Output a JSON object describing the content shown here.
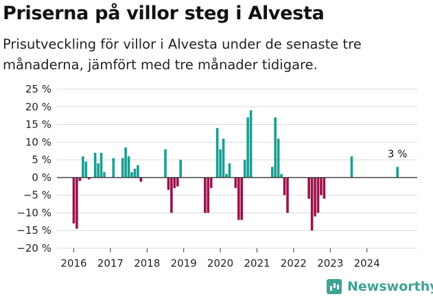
{
  "title": "Priserna på villor steg i Alvesta",
  "subtitle": "Prisutveckling för villor i Alvesta under de senaste tre månaderna, jämfört med tre månader tidigare.",
  "brand": {
    "name": "Newsworthy",
    "icon": "newsworthy-logo-icon"
  },
  "colors": {
    "positive": "#1a9e92",
    "negative": "#9c1149",
    "grid": "#d9d9d9",
    "zero": "#333333"
  },
  "chart_data": {
    "type": "bar",
    "ylim": [
      -20,
      25
    ],
    "yticks": [
      25,
      20,
      15,
      10,
      5,
      0,
      -5,
      -10,
      -15,
      -20
    ],
    "ytick_labels": [
      "25 %",
      "20 %",
      "15 %",
      "10 %",
      "5 %",
      "0 %",
      "−5 %",
      "−10 %",
      "−15 %",
      "−20 %"
    ],
    "xtick_labels": [
      "2016",
      "2017",
      "2018",
      "2019",
      "2020",
      "2021",
      "2022",
      "2023",
      "2024"
    ],
    "x_start": "2016-01",
    "grid": true,
    "annotation": {
      "label": "3 %",
      "x": "2024-11"
    },
    "series": [
      {
        "values": [
          -13,
          -14.5,
          -1,
          6,
          4.5,
          -0.5,
          null,
          7,
          4,
          7,
          1.5,
          null,
          null,
          5.5,
          null,
          null,
          5.5,
          8.5,
          6,
          1.5,
          2.5,
          3.5,
          -1.2,
          null,
          null,
          null,
          null,
          null,
          null,
          null,
          8,
          -3.5,
          -10,
          -3,
          -2.5,
          5,
          null,
          null,
          null,
          null,
          null,
          null,
          null,
          -10,
          -10,
          -3,
          null,
          14,
          8,
          11,
          1,
          4,
          null,
          -3,
          -12,
          -12,
          5,
          17,
          19,
          null,
          null,
          null,
          null,
          null,
          null,
          3,
          17,
          11,
          1,
          -5,
          -10,
          null,
          null,
          null,
          null,
          null,
          null,
          -6,
          -15,
          -11,
          -10,
          -5,
          -6,
          null,
          null,
          null,
          null,
          null,
          null,
          null,
          null,
          6,
          null,
          null,
          null,
          null,
          null,
          null,
          null,
          null,
          null,
          null,
          null,
          null,
          null,
          null,
          3
        ]
      }
    ]
  }
}
